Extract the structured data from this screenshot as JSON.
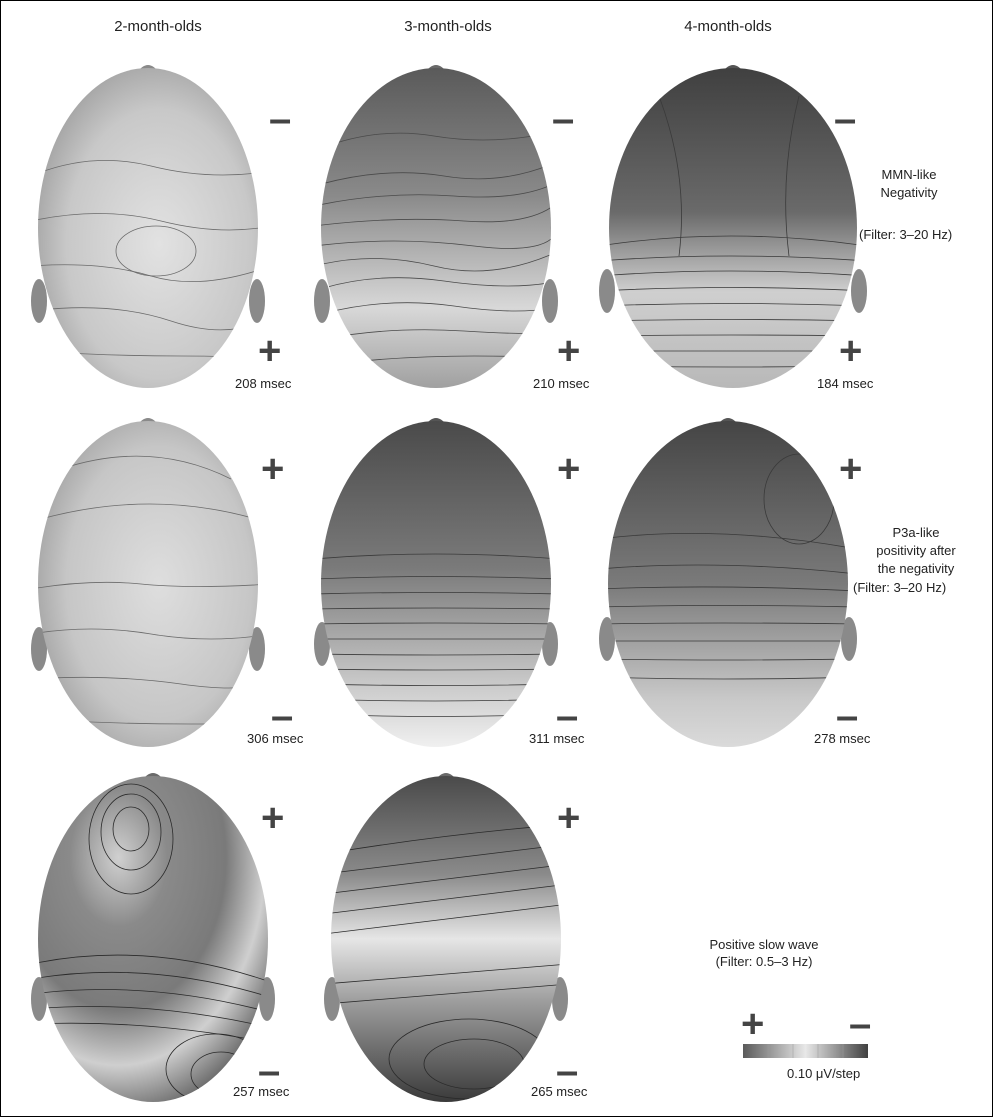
{
  "columns": [
    "2-month-olds",
    "3-month-olds",
    "4-month-olds"
  ],
  "rows": [
    {
      "label_lines": [
        "MMN-like",
        "Negativity"
      ],
      "filter": "(Filter: 3–20 Hz)",
      "maps": [
        {
          "time": "208 msec",
          "top_sign": "–",
          "bottom_sign": "+"
        },
        {
          "time": "210 msec",
          "top_sign": "–",
          "bottom_sign": "+"
        },
        {
          "time": "184 msec",
          "top_sign": "–",
          "bottom_sign": "+"
        }
      ]
    },
    {
      "label_lines": [
        "P3a-like",
        "positivity after",
        "the negativity"
      ],
      "filter": "(Filter: 3–20 Hz)",
      "maps": [
        {
          "time": "306 msec",
          "top_sign": "+",
          "bottom_sign": "–"
        },
        {
          "time": "311 msec",
          "top_sign": "+",
          "bottom_sign": "–"
        },
        {
          "time": "278 msec",
          "top_sign": "+",
          "bottom_sign": "–"
        }
      ]
    },
    {
      "label_lines": [
        "Positive slow wave"
      ],
      "filter": "(Filter: 0.5–3 Hz)",
      "maps": [
        {
          "time": "257 msec",
          "top_sign": "+",
          "bottom_sign": "–"
        },
        {
          "time": "265 msec",
          "top_sign": "+",
          "bottom_sign": "–"
        }
      ]
    }
  ],
  "legend": {
    "plus": "+",
    "minus": "–",
    "scale": "0.10 μV/step"
  }
}
